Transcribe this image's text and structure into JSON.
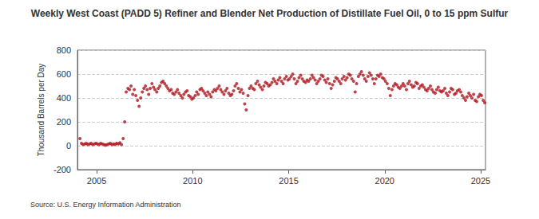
{
  "chart_data": {
    "type": "scatter",
    "title": "Weekly West Coast (PADD 5) Refiner and Blender Net Production of Distillate Fuel Oil, 0 to 15 ppm Sulfur",
    "y_label": "Thousand Barrels per Day",
    "source": "Source: U.S. Energy Information Administration",
    "color": "#b5121b",
    "marker": "circle",
    "grid": true,
    "xlim": [
      2004,
      2025.25
    ],
    "xticks": [
      2005,
      2010,
      2015,
      2020,
      2025
    ],
    "ylim": [
      -200,
      800
    ],
    "yticks": [
      -200,
      0,
      200,
      400,
      600,
      800
    ],
    "x": [
      2004.13,
      2004.21,
      2004.29,
      2004.38,
      2004.46,
      2004.54,
      2004.63,
      2004.71,
      2004.79,
      2004.88,
      2004.96,
      2005.04,
      2005.13,
      2005.21,
      2005.29,
      2005.38,
      2005.46,
      2005.54,
      2005.63,
      2005.71,
      2005.79,
      2005.88,
      2005.96,
      2006.04,
      2006.13,
      2006.21,
      2006.29,
      2006.38,
      2006.46,
      2006.54,
      2006.63,
      2006.71,
      2006.79,
      2006.88,
      2006.96,
      2007.04,
      2007.13,
      2007.21,
      2007.29,
      2007.38,
      2007.46,
      2007.54,
      2007.63,
      2007.71,
      2007.79,
      2007.88,
      2007.96,
      2008.04,
      2008.13,
      2008.21,
      2008.29,
      2008.38,
      2008.46,
      2008.54,
      2008.63,
      2008.71,
      2008.79,
      2008.88,
      2008.96,
      2009.04,
      2009.13,
      2009.21,
      2009.29,
      2009.38,
      2009.46,
      2009.54,
      2009.63,
      2009.71,
      2009.79,
      2009.88,
      2009.96,
      2010.04,
      2010.13,
      2010.21,
      2010.29,
      2010.38,
      2010.46,
      2010.54,
      2010.63,
      2010.71,
      2010.79,
      2010.88,
      2010.96,
      2011.04,
      2011.13,
      2011.21,
      2011.29,
      2011.38,
      2011.46,
      2011.54,
      2011.63,
      2011.71,
      2011.79,
      2011.88,
      2011.96,
      2012.04,
      2012.13,
      2012.21,
      2012.29,
      2012.38,
      2012.46,
      2012.54,
      2012.63,
      2012.71,
      2012.79,
      2012.88,
      2012.96,
      2013.04,
      2013.13,
      2013.21,
      2013.29,
      2013.38,
      2013.46,
      2013.54,
      2013.63,
      2013.71,
      2013.79,
      2013.88,
      2013.96,
      2014.04,
      2014.13,
      2014.21,
      2014.29,
      2014.38,
      2014.46,
      2014.54,
      2014.63,
      2014.71,
      2014.79,
      2014.88,
      2014.96,
      2015.04,
      2015.13,
      2015.21,
      2015.29,
      2015.38,
      2015.46,
      2015.54,
      2015.63,
      2015.71,
      2015.79,
      2015.88,
      2015.96,
      2016.04,
      2016.13,
      2016.21,
      2016.29,
      2016.38,
      2016.46,
      2016.54,
      2016.63,
      2016.71,
      2016.79,
      2016.88,
      2016.96,
      2017.04,
      2017.13,
      2017.21,
      2017.29,
      2017.38,
      2017.46,
      2017.54,
      2017.63,
      2017.71,
      2017.79,
      2017.88,
      2017.96,
      2018.04,
      2018.13,
      2018.21,
      2018.29,
      2018.38,
      2018.46,
      2018.54,
      2018.63,
      2018.71,
      2018.79,
      2018.88,
      2018.96,
      2019.04,
      2019.13,
      2019.21,
      2019.29,
      2019.38,
      2019.46,
      2019.54,
      2019.63,
      2019.71,
      2019.79,
      2019.88,
      2019.96,
      2020.04,
      2020.13,
      2020.21,
      2020.29,
      2020.38,
      2020.46,
      2020.54,
      2020.63,
      2020.71,
      2020.79,
      2020.88,
      2020.96,
      2021.04,
      2021.13,
      2021.21,
      2021.29,
      2021.38,
      2021.46,
      2021.54,
      2021.63,
      2021.71,
      2021.79,
      2021.88,
      2021.96,
      2022.04,
      2022.13,
      2022.21,
      2022.29,
      2022.38,
      2022.46,
      2022.54,
      2022.63,
      2022.71,
      2022.79,
      2022.88,
      2022.96,
      2023.04,
      2023.13,
      2023.21,
      2023.29,
      2023.38,
      2023.46,
      2023.54,
      2023.63,
      2023.71,
      2023.79,
      2023.88,
      2023.96,
      2024.04,
      2024.13,
      2024.21,
      2024.29,
      2024.38,
      2024.46,
      2024.54,
      2024.63,
      2024.71,
      2024.79,
      2024.88,
      2024.96,
      2025.04,
      2025.13,
      2025.21
    ],
    "values": [
      60,
      20,
      10,
      15,
      20,
      10,
      15,
      20,
      10,
      15,
      20,
      15,
      10,
      20,
      15,
      10,
      5,
      10,
      15,
      20,
      10,
      15,
      10,
      20,
      15,
      25,
      10,
      60,
      200,
      450,
      480,
      470,
      500,
      430,
      470,
      420,
      380,
      330,
      400,
      450,
      480,
      500,
      470,
      430,
      480,
      520,
      490,
      470,
      450,
      480,
      500,
      530,
      540,
      520,
      500,
      480,
      460,
      470,
      440,
      430,
      450,
      470,
      440,
      420,
      400,
      430,
      450,
      460,
      420,
      410,
      390,
      400,
      420,
      450,
      430,
      470,
      480,
      460,
      440,
      420,
      450,
      430,
      410,
      450,
      470,
      460,
      480,
      500,
      470,
      450,
      430,
      460,
      480,
      440,
      420,
      430,
      460,
      500,
      520,
      480,
      450,
      470,
      440,
      350,
      300,
      420,
      480,
      500,
      480,
      470,
      520,
      540,
      510,
      490,
      470,
      500,
      530,
      520,
      500,
      510,
      530,
      560,
      540,
      520,
      550,
      570,
      540,
      520,
      560,
      580,
      550,
      560,
      580,
      600,
      560,
      520,
      540,
      570,
      590,
      560,
      540,
      530,
      550,
      540,
      560,
      590,
      570,
      550,
      520,
      540,
      560,
      590,
      580,
      550,
      530,
      560,
      520,
      480,
      510,
      540,
      570,
      560,
      540,
      520,
      560,
      580,
      550,
      570,
      600,
      590,
      560,
      540,
      450,
      520,
      580,
      600,
      620,
      590,
      560,
      540,
      580,
      610,
      590,
      560,
      520,
      560,
      590,
      580,
      600,
      570,
      560,
      540,
      520,
      480,
      420,
      470,
      500,
      520,
      510,
      490,
      480,
      500,
      520,
      500,
      470,
      520,
      540,
      510,
      490,
      500,
      530,
      520,
      480,
      500,
      510,
      490,
      470,
      460,
      480,
      500,
      470,
      450,
      440,
      470,
      490,
      460,
      450,
      460,
      480,
      440,
      420,
      450,
      480,
      470,
      430,
      440,
      460,
      470,
      450,
      420,
      400,
      380,
      410,
      440,
      420,
      400,
      430,
      380,
      370,
      410,
      430,
      420,
      380,
      360
    ]
  }
}
